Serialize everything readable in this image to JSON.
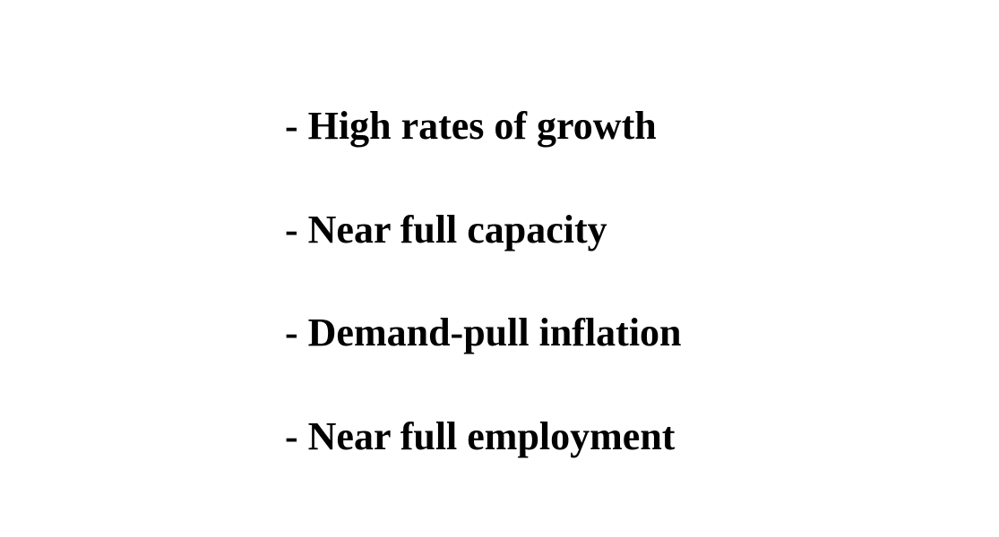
{
  "slide": {
    "bullets": [
      "- High rates of growth",
      "- Near full capacity",
      "- Demand-pull inflation",
      "- Near full employment"
    ]
  }
}
